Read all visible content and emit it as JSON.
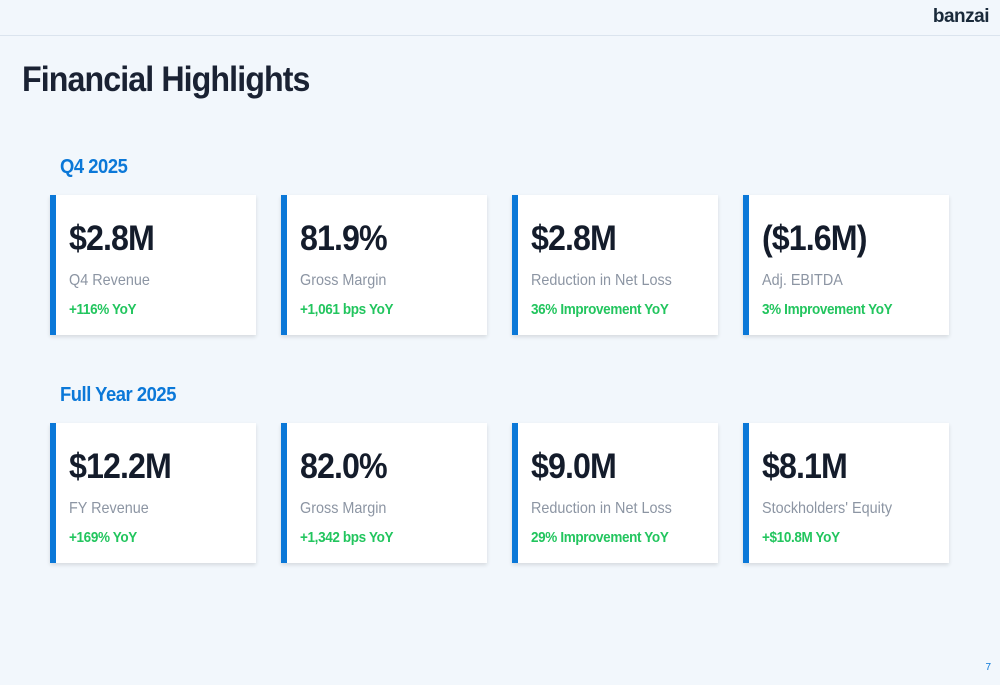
{
  "logo": "banzai",
  "title": "Financial Highlights",
  "page_number": "7",
  "accent_color": "#0b78d8",
  "positive_color": "#22c55e",
  "sections": [
    {
      "label": "Q4 2025",
      "cards": [
        {
          "value": "$2.8M",
          "label": "Q4 Revenue",
          "change": "+116% YoY"
        },
        {
          "value": "81.9%",
          "label": "Gross Margin",
          "change": "+1,061 bps YoY"
        },
        {
          "value": "$2.8M",
          "label": "Reduction in Net Loss",
          "change": "36% Improvement YoY"
        },
        {
          "value": "($1.6M)",
          "label": "Adj. EBITDA",
          "change": "3% Improvement YoY"
        }
      ]
    },
    {
      "label": "Full Year 2025",
      "cards": [
        {
          "value": "$12.2M",
          "label": "FY Revenue",
          "change": "+169% YoY"
        },
        {
          "value": "82.0%",
          "label": "Gross Margin",
          "change": "+1,342 bps YoY"
        },
        {
          "value": "$9.0M",
          "label": "Reduction in Net Loss",
          "change": "29% Improvement YoY"
        },
        {
          "value": "$8.1M",
          "label": "Stockholders' Equity",
          "change": "+$10.8M YoY"
        }
      ]
    }
  ]
}
